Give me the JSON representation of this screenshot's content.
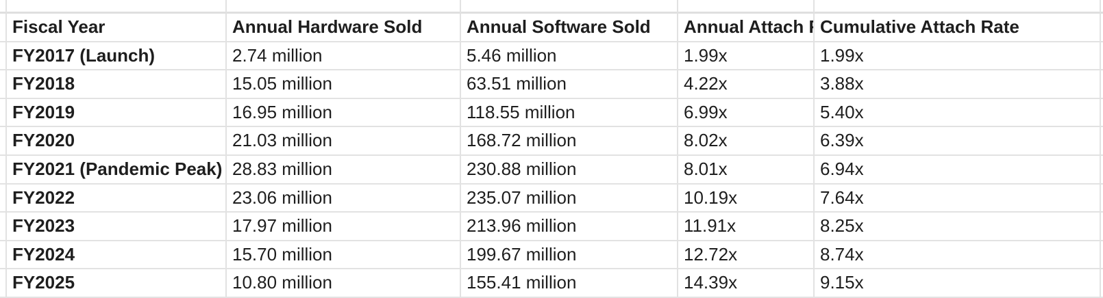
{
  "app": {
    "type": "spreadsheet-table",
    "background_color": "#ffffff",
    "gridline_color": "#e2e2e2",
    "text_color": "#1e1e1e"
  },
  "table": {
    "columns": {
      "fiscal_year": "Fiscal Year",
      "hardware": "Annual Hardware Sold",
      "software": "Annual Software Sold",
      "annual_attach": "Annual Attach Rate",
      "cumulative_attach": "Cumulative Attach Rate"
    },
    "rows": [
      {
        "fiscal_year": "FY2017 (Launch)",
        "hardware": "2.74 million",
        "software": "5.46 million",
        "annual_attach": "1.99x",
        "cumulative_attach": "1.99x"
      },
      {
        "fiscal_year": "FY2018",
        "hardware": "15.05 million",
        "software": "63.51 million",
        "annual_attach": "4.22x",
        "cumulative_attach": "3.88x"
      },
      {
        "fiscal_year": "FY2019",
        "hardware": "16.95 million",
        "software": "118.55 million",
        "annual_attach": "6.99x",
        "cumulative_attach": "5.40x"
      },
      {
        "fiscal_year": "FY2020",
        "hardware": "21.03 million",
        "software": "168.72 million",
        "annual_attach": "8.02x",
        "cumulative_attach": "6.39x"
      },
      {
        "fiscal_year": "FY2021 (Pandemic Peak)",
        "hardware": "28.83 million",
        "software": "230.88 million",
        "annual_attach": "8.01x",
        "cumulative_attach": "6.94x"
      },
      {
        "fiscal_year": "FY2022",
        "hardware": "23.06 million",
        "software": "235.07 million",
        "annual_attach": "10.19x",
        "cumulative_attach": "7.64x"
      },
      {
        "fiscal_year": "FY2023",
        "hardware": "17.97 million",
        "software": "213.96 million",
        "annual_attach": "11.91x",
        "cumulative_attach": "8.25x"
      },
      {
        "fiscal_year": "FY2024",
        "hardware": "15.70 million",
        "software": "199.67 million",
        "annual_attach": "12.72x",
        "cumulative_attach": "8.74x"
      },
      {
        "fiscal_year": "FY2025",
        "hardware": "10.80 million",
        "software": "155.41 million",
        "annual_attach": "14.39x",
        "cumulative_attach": "9.15x"
      }
    ]
  }
}
